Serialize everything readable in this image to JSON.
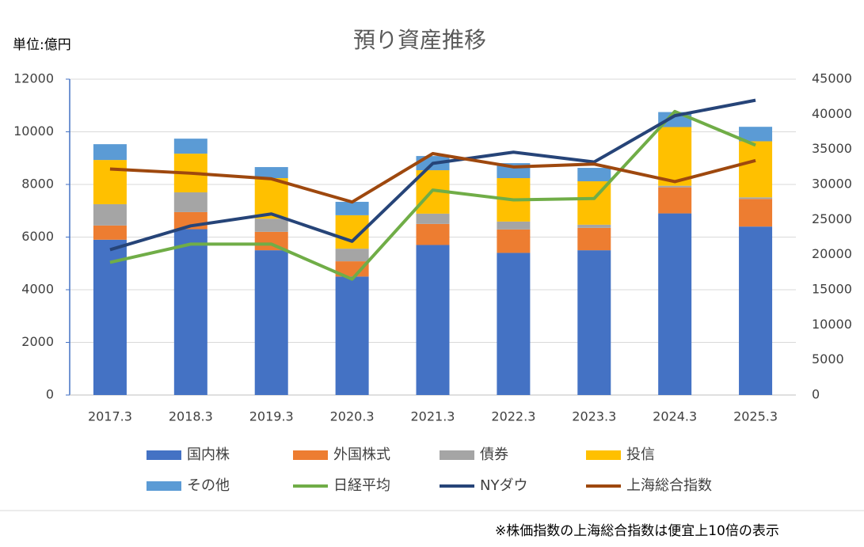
{
  "chart_data": {
    "type": "bar",
    "title": "預り資産推移",
    "y_label": "単位:億円",
    "footnote": "※株価指数の上海総合指数は便宜上10倍の表示",
    "categories": [
      "2017.3",
      "2018.3",
      "2019.3",
      "2020.3",
      "2021.3",
      "2022.3",
      "2023.3",
      "2024.3",
      "2025.3"
    ],
    "ylim": [
      0,
      12000
    ],
    "yticks": [
      0,
      2000,
      4000,
      6000,
      8000,
      10000,
      12000
    ],
    "y2lim": [
      0,
      45000
    ],
    "y2ticks": [
      0,
      5000,
      10000,
      15000,
      20000,
      25000,
      30000,
      35000,
      40000,
      45000
    ],
    "grid": true,
    "stacked": true,
    "series": [
      {
        "name": "国内株",
        "type": "bar",
        "color": "#4472c4",
        "values": [
          5900,
          6300,
          5500,
          4500,
          5700,
          5400,
          5500,
          6900,
          6400
        ]
      },
      {
        "name": "外国株式",
        "type": "bar",
        "color": "#ed7d31",
        "values": [
          540,
          650,
          700,
          580,
          800,
          890,
          850,
          990,
          1050
        ]
      },
      {
        "name": "債券",
        "type": "bar",
        "color": "#a5a5a5",
        "values": [
          810,
          750,
          500,
          480,
          390,
          300,
          120,
          60,
          60
        ]
      },
      {
        "name": "投信",
        "type": "bar",
        "color": "#ffc000",
        "values": [
          1680,
          1470,
          1540,
          1270,
          1650,
          1650,
          1650,
          2230,
          2130
        ]
      },
      {
        "name": "その他",
        "type": "bar",
        "color": "#5b9bd5",
        "values": [
          600,
          570,
          420,
          510,
          540,
          570,
          510,
          570,
          550
        ]
      },
      {
        "name": "日経平均",
        "type": "line",
        "axis": "y2",
        "color": "#70ad47",
        "values": [
          18900,
          21500,
          21500,
          16500,
          29200,
          27800,
          28000,
          40400,
          35600
        ]
      },
      {
        "name": "NYダウ",
        "type": "line",
        "axis": "y2",
        "color": "#264478",
        "values": [
          20700,
          24100,
          25800,
          21900,
          33000,
          34600,
          33200,
          39800,
          42000
        ]
      },
      {
        "name": "上海総合指数",
        "type": "line",
        "axis": "y2",
        "color": "#9e480e",
        "values": [
          32200,
          31600,
          30800,
          27500,
          34400,
          32500,
          32900,
          30400,
          33400
        ]
      }
    ]
  }
}
